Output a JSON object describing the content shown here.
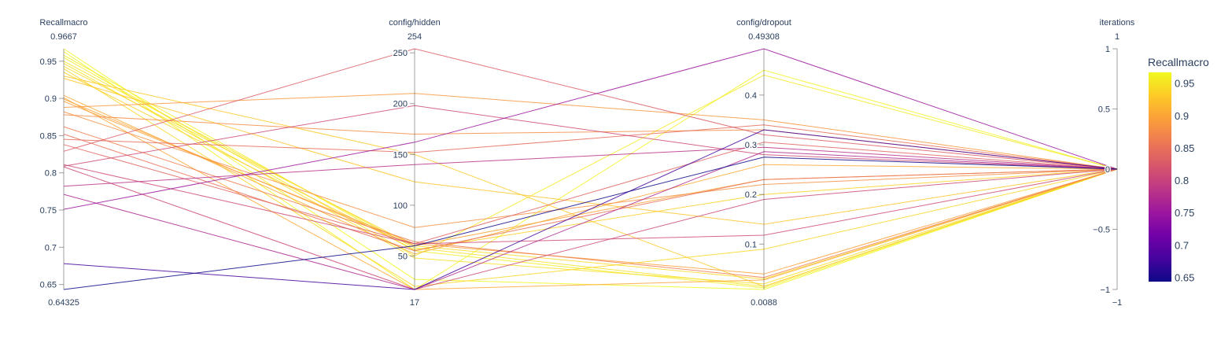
{
  "chart_data": {
    "type": "parallel_coordinates",
    "colorscale": "plasma",
    "color_dimension": "Recallmacro",
    "color_range": [
      0.64325,
      0.9667
    ],
    "colorbar": {
      "title": "Recallmacro",
      "ticks": [
        "0.65",
        "0.7",
        "0.75",
        "0.8",
        "0.85",
        "0.9",
        "0.95"
      ],
      "tick_values": [
        0.65,
        0.7,
        0.75,
        0.8,
        0.85,
        0.9,
        0.95
      ]
    },
    "dimensions": [
      {
        "label": "Recallmacro",
        "range": [
          0.64325,
          0.9667
        ],
        "range_labels": {
          "max": "0.9667",
          "min": "0.64325"
        },
        "tick_values": [
          0.65,
          0.7,
          0.75,
          0.8,
          0.85,
          0.9,
          0.95
        ],
        "tick_labels": [
          "0.65",
          "0.7",
          "0.75",
          "0.8",
          "0.85",
          "0.9",
          "0.95"
        ]
      },
      {
        "label": "config/hidden",
        "range": [
          17,
          254
        ],
        "range_labels": {
          "max": "254",
          "min": "17"
        },
        "tick_values": [
          50,
          100,
          150,
          200,
          250
        ],
        "tick_labels": [
          "50",
          "100",
          "150",
          "200",
          "250"
        ]
      },
      {
        "label": "config/dropout",
        "range": [
          0.0088,
          0.49308
        ],
        "range_labels": {
          "max": "0.49308",
          "min": "0.0088"
        },
        "tick_values": [
          0.1,
          0.2,
          0.3,
          0.4
        ],
        "tick_labels": [
          "0.1",
          "0.2",
          "0.3",
          "0.4"
        ]
      },
      {
        "label": "iterations",
        "range": [
          -1,
          1
        ],
        "range_labels": {
          "max": "1",
          "min": "−1"
        },
        "tick_values": [
          -1,
          -0.5,
          0,
          0.5,
          1
        ],
        "tick_labels": [
          "−1",
          "−0.5",
          "0",
          "0.5",
          "1"
        ]
      }
    ],
    "lines": [
      [
        0.9667,
        27,
        0.0088,
        0
      ],
      [
        0.963,
        17,
        0.45,
        0
      ],
      [
        0.958,
        55,
        0.012,
        0
      ],
      [
        0.955,
        50,
        0.44,
        0
      ],
      [
        0.95,
        58,
        0.015,
        0
      ],
      [
        0.947,
        48,
        0.02,
        0
      ],
      [
        0.943,
        60,
        0.03,
        0
      ],
      [
        0.94,
        20,
        0.09,
        0
      ],
      [
        0.935,
        56,
        0.2,
        0
      ],
      [
        0.93,
        150,
        0.015,
        0
      ],
      [
        0.927,
        123,
        0.14,
        0
      ],
      [
        0.904,
        52,
        0.26,
        0
      ],
      [
        0.901,
        17,
        0.028,
        0
      ],
      [
        0.899,
        60,
        0.23,
        0
      ],
      [
        0.896,
        62,
        0.04,
        0
      ],
      [
        0.888,
        210,
        0.35,
        0
      ],
      [
        0.882,
        78,
        0.22,
        0
      ],
      [
        0.878,
        170,
        0.33,
        0
      ],
      [
        0.862,
        64,
        0.033,
        0
      ],
      [
        0.852,
        55,
        0.23,
        0
      ],
      [
        0.845,
        152,
        0.34,
        0
      ],
      [
        0.838,
        62,
        0.305,
        0
      ],
      [
        0.829,
        254,
        0.32,
        0
      ],
      [
        0.811,
        62,
        0.118,
        0
      ],
      [
        0.809,
        198,
        0.28,
        0
      ],
      [
        0.808,
        17,
        0.19,
        0
      ],
      [
        0.782,
        140,
        0.295,
        0
      ],
      [
        0.771,
        17,
        0.286,
        0
      ],
      [
        0.751,
        162,
        0.49308,
        0
      ],
      [
        0.678,
        17,
        0.33,
        0
      ],
      [
        0.64325,
        60,
        0.275,
        0
      ]
    ]
  }
}
